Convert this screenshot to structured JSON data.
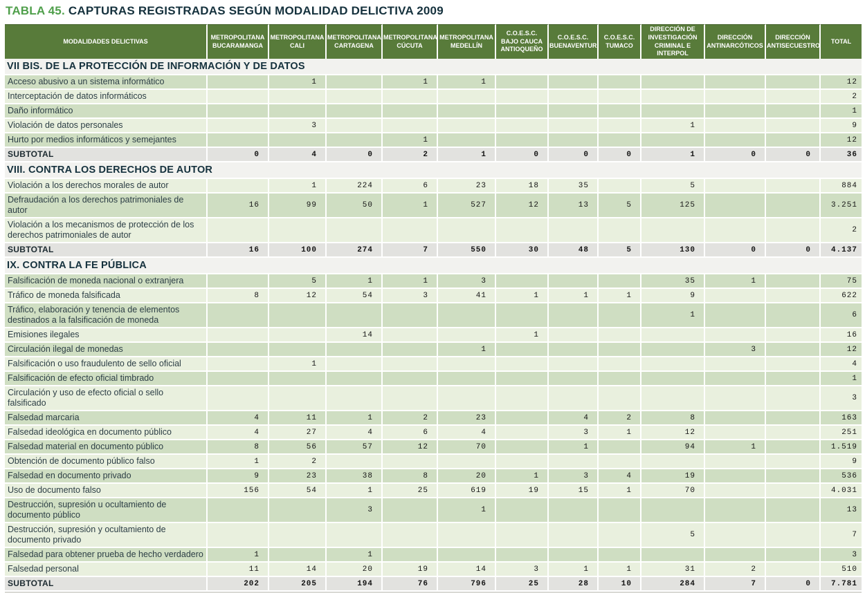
{
  "title": {
    "prefix": "TABLA 45.",
    "text": "CAPTURAS REGISTRADAS SEGÚN MODALIDAD DELICTIVA 2009"
  },
  "colors": {
    "header_green": "#587b3a",
    "row_dark_green": "#cfdec2",
    "row_light_green": "#e9f0de",
    "subtotal_grey": "#e2e2df",
    "section_band": "#f2f2ef",
    "title_green": "#4f9f4b",
    "dark_text": "#15313d"
  },
  "table": {
    "columns": [
      [
        "MODALIDADES DELICTIVAS"
      ],
      [
        "METROPOLITANA",
        "BUCARAMANGA"
      ],
      [
        "METROPOLITANA",
        "CALI"
      ],
      [
        "METROPOLITANA",
        "CARTAGENA"
      ],
      [
        "METROPOLITANA",
        "CÚCUTA"
      ],
      [
        "METROPOLITANA",
        "MEDELLÍN"
      ],
      [
        "C.O.E.S.C.",
        "BAJO CAUCA",
        "ANTIOQUEÑO"
      ],
      [
        "C.O.E.S.C.",
        "BUENAVENTURA"
      ],
      [
        "C.O.E.S.C.",
        "TUMACO"
      ],
      [
        "DIRECCIÓN DE",
        "INVESTIGACIÓN",
        "CRIMINAL E INTERPOL"
      ],
      [
        "DIRECCIÓN",
        "ANTINARCÓTICOS"
      ],
      [
        "DIRECCIÓN",
        "ANTISECUESTRO"
      ],
      [
        "TOTAL"
      ]
    ],
    "subtotal_label": "SUBTOTAL",
    "sections": [
      {
        "heading": "VII BIS. DE LA PROTECCIÓN DE INFORMACIÓN Y DE DATOS",
        "rows": [
          {
            "label": "Acceso abusivo a un sistema informático",
            "shade": "d",
            "values": [
              "",
              "1",
              "",
              "1",
              "1",
              "",
              "",
              "",
              "",
              "",
              "",
              "12"
            ]
          },
          {
            "label": "Interceptación de datos informáticos",
            "shade": "l",
            "values": [
              "",
              "",
              "",
              "",
              "",
              "",
              "",
              "",
              "",
              "",
              "",
              "2"
            ]
          },
          {
            "label": "Daño informático",
            "shade": "d",
            "values": [
              "",
              "",
              "",
              "",
              "",
              "",
              "",
              "",
              "",
              "",
              "",
              "1"
            ]
          },
          {
            "label": "Violación de datos personales",
            "shade": "l",
            "values": [
              "",
              "3",
              "",
              "",
              "",
              "",
              "",
              "",
              "1",
              "",
              "",
              "9"
            ]
          },
          {
            "label": "Hurto por medios informáticos y semejantes",
            "shade": "d",
            "values": [
              "",
              "",
              "",
              "1",
              "",
              "",
              "",
              "",
              "",
              "",
              "",
              "12"
            ]
          }
        ],
        "subtotal": [
          "0",
          "4",
          "0",
          "2",
          "1",
          "0",
          "0",
          "0",
          "1",
          "0",
          "0",
          "36"
        ]
      },
      {
        "heading": "VIII. CONTRA LOS DERECHOS DE AUTOR",
        "rows": [
          {
            "label": "Violación a los derechos morales de autor",
            "shade": "l",
            "values": [
              "",
              "1",
              "224",
              "6",
              "23",
              "18",
              "35",
              "",
              "5",
              "",
              "",
              "884"
            ]
          },
          {
            "label": "Defraudación a los derechos patrimoniales de autor",
            "shade": "d",
            "values": [
              "16",
              "99",
              "50",
              "1",
              "527",
              "12",
              "13",
              "5",
              "125",
              "",
              "",
              "3.251"
            ]
          },
          {
            "label": "Violación a los mecanismos de protección de los derechos patrimoniales de autor",
            "shade": "l",
            "values": [
              "",
              "",
              "",
              "",
              "",
              "",
              "",
              "",
              "",
              "",
              "",
              "2"
            ]
          }
        ],
        "subtotal": [
          "16",
          "100",
          "274",
          "7",
          "550",
          "30",
          "48",
          "5",
          "130",
          "0",
          "0",
          "4.137"
        ]
      },
      {
        "heading": "IX. CONTRA LA FE PÚBLICA",
        "rows": [
          {
            "label": "Falsificación de moneda nacional o extranjera",
            "shade": "d",
            "values": [
              "",
              "5",
              "1",
              "1",
              "3",
              "",
              "",
              "",
              "35",
              "1",
              "",
              "75"
            ]
          },
          {
            "label": "Tráfico de moneda falsificada",
            "shade": "l",
            "values": [
              "8",
              "12",
              "54",
              "3",
              "41",
              "1",
              "1",
              "1",
              "9",
              "",
              "",
              "622"
            ]
          },
          {
            "label": "Tráfico, elaboración y tenencia de elementos destinados a la falsificación de moneda",
            "shade": "d",
            "values": [
              "",
              "",
              "",
              "",
              "",
              "",
              "",
              "",
              "1",
              "",
              "",
              "6"
            ]
          },
          {
            "label": "Emisiones ilegales",
            "shade": "l",
            "values": [
              "",
              "",
              "14",
              "",
              "",
              "1",
              "",
              "",
              "",
              "",
              "",
              "16"
            ]
          },
          {
            "label": "Circulación ilegal de monedas",
            "shade": "d",
            "values": [
              "",
              "",
              "",
              "",
              "1",
              "",
              "",
              "",
              "",
              "3",
              "",
              "12"
            ]
          },
          {
            "label": "Falsificación o uso fraudulento de sello oficial",
            "shade": "l",
            "values": [
              "",
              "1",
              "",
              "",
              "",
              "",
              "",
              "",
              "",
              "",
              "",
              "4"
            ]
          },
          {
            "label": "Falsificación de efecto oficial timbrado",
            "shade": "d",
            "values": [
              "",
              "",
              "",
              "",
              "",
              "",
              "",
              "",
              "",
              "",
              "",
              "1"
            ]
          },
          {
            "label": "Circulación y uso de efecto oficial o sello falsificado",
            "shade": "l",
            "values": [
              "",
              "",
              "",
              "",
              "",
              "",
              "",
              "",
              "",
              "",
              "",
              "3"
            ]
          },
          {
            "label": "Falsedad marcaria",
            "shade": "d",
            "values": [
              "4",
              "11",
              "1",
              "2",
              "23",
              "",
              "4",
              "2",
              "8",
              "",
              "",
              "163"
            ]
          },
          {
            "label": "Falsedad ideológica en documento público",
            "shade": "l",
            "values": [
              "4",
              "27",
              "4",
              "6",
              "4",
              "",
              "3",
              "1",
              "12",
              "",
              "",
              "251"
            ]
          },
          {
            "label": "Falsedad material en documento público",
            "shade": "d",
            "values": [
              "8",
              "56",
              "57",
              "12",
              "70",
              "",
              "1",
              "",
              "94",
              "1",
              "",
              "1.519"
            ]
          },
          {
            "label": "Obtención de documento público falso",
            "shade": "l",
            "values": [
              "1",
              "2",
              "",
              "",
              "",
              "",
              "",
              "",
              "",
              "",
              "",
              "9"
            ]
          },
          {
            "label": "Falsedad en documento privado",
            "shade": "d",
            "values": [
              "9",
              "23",
              "38",
              "8",
              "20",
              "1",
              "3",
              "4",
              "19",
              "",
              "",
              "536"
            ]
          },
          {
            "label": "Uso de documento falso",
            "shade": "l",
            "values": [
              "156",
              "54",
              "1",
              "25",
              "619",
              "19",
              "15",
              "1",
              "70",
              "",
              "",
              "4.031"
            ]
          },
          {
            "label": "Destrucción, supresión u ocultamiento de documento público",
            "shade": "d",
            "values": [
              "",
              "",
              "3",
              "",
              "1",
              "",
              "",
              "",
              "",
              "",
              "",
              "13"
            ]
          },
          {
            "label": "Destrucción, supresión y ocultamiento de documento privado",
            "shade": "l",
            "values": [
              "",
              "",
              "",
              "",
              "",
              "",
              "",
              "",
              "5",
              "",
              "",
              "7"
            ]
          },
          {
            "label": "Falsedad para obtener prueba de hecho verdadero",
            "shade": "d",
            "values": [
              "1",
              "",
              "1",
              "",
              "",
              "",
              "",
              "",
              "",
              "",
              "",
              "3"
            ]
          },
          {
            "label": "Falsedad personal",
            "shade": "l",
            "values": [
              "11",
              "14",
              "20",
              "19",
              "14",
              "3",
              "1",
              "1",
              "31",
              "2",
              "",
              "510"
            ]
          }
        ],
        "subtotal": [
          "202",
          "205",
          "194",
          "76",
          "796",
          "25",
          "28",
          "10",
          "284",
          "7",
          "0",
          "7.781"
        ]
      }
    ]
  }
}
